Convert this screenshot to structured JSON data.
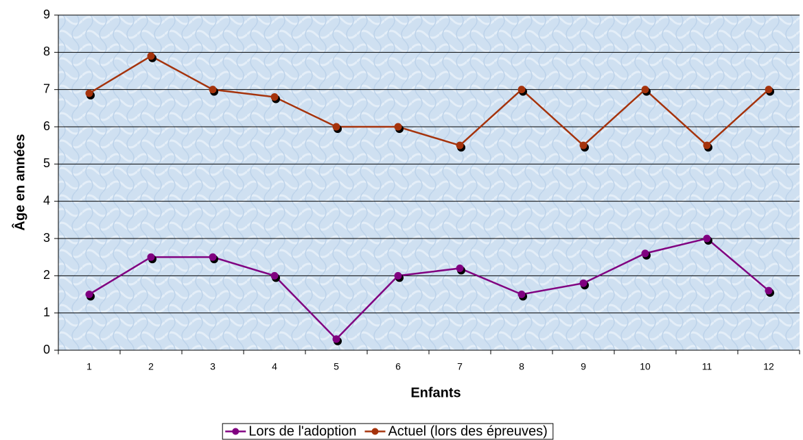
{
  "chart_data": {
    "type": "line",
    "x_label": "Enfants",
    "y_label": "Âge en années",
    "categories": [
      "1",
      "2",
      "3",
      "4",
      "5",
      "6",
      "7",
      "8",
      "9",
      "10",
      "11",
      "12"
    ],
    "series": [
      {
        "name": "Lors de l'adoption",
        "color": "#800080",
        "values": [
          1.5,
          2.5,
          2.5,
          2.0,
          0.3,
          2.0,
          2.2,
          1.5,
          1.8,
          2.6,
          3.0,
          1.6
        ]
      },
      {
        "name": "Actuel (lors des épreuves)",
        "color": "#a5330c",
        "values": [
          6.9,
          7.9,
          7.0,
          6.8,
          6.0,
          6.0,
          5.5,
          7.0,
          5.5,
          7.0,
          5.5,
          7.0
        ]
      }
    ],
    "ylim": [
      0,
      9
    ],
    "yticks": [
      0,
      1,
      2,
      3,
      4,
      5,
      6,
      7,
      8,
      9
    ],
    "grid": true,
    "legend": "bottom"
  }
}
